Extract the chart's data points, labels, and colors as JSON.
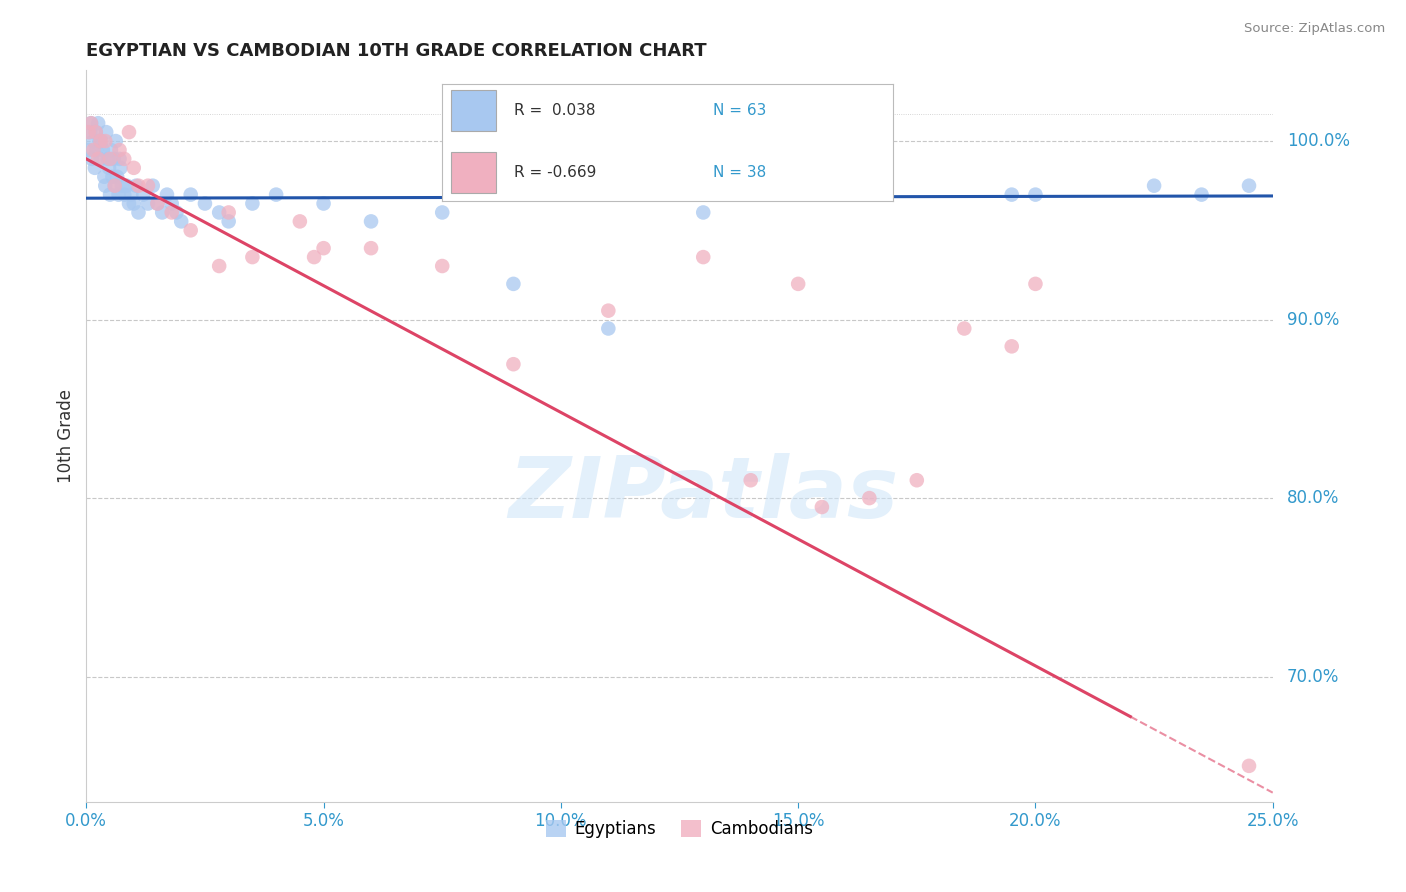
{
  "title": "EGYPTIAN VS CAMBODIAN 10TH GRADE CORRELATION CHART",
  "source": "Source: ZipAtlas.com",
  "xlabel_ticks": [
    "0.0%",
    "5.0%",
    "10.0%",
    "15.0%",
    "20.0%",
    "25.0%"
  ],
  "xlabel_values": [
    0.0,
    5.0,
    10.0,
    15.0,
    20.0,
    25.0
  ],
  "ylabel": "10th Grade",
  "right_ytick_labels": [
    "100.0%",
    "90.0%",
    "80.0%",
    "70.0%"
  ],
  "right_ytick_values": [
    100.0,
    90.0,
    80.0,
    70.0
  ],
  "xlim": [
    0.0,
    25.0
  ],
  "ylim": [
    63.0,
    104.0
  ],
  "egyptian_R": 0.038,
  "egyptian_N": 63,
  "cambodian_R": -0.669,
  "cambodian_N": 38,
  "egyptian_color": "#a8c8f0",
  "cambodian_color": "#f0b0c0",
  "egyptian_line_color": "#2255aa",
  "cambodian_line_color": "#dd4466",
  "watermark_text": "ZIPatlas",
  "background_color": "#ffffff",
  "eg_line_intercept": 96.8,
  "eg_line_slope": 0.005,
  "cam_line_intercept": 99.0,
  "cam_line_slope": -1.42,
  "cam_solid_end": 22.0,
  "egyptian_x": [
    0.05,
    0.08,
    0.1,
    0.12,
    0.15,
    0.18,
    0.2,
    0.22,
    0.25,
    0.28,
    0.3,
    0.32,
    0.35,
    0.38,
    0.4,
    0.42,
    0.45,
    0.48,
    0.5,
    0.52,
    0.55,
    0.58,
    0.6,
    0.62,
    0.65,
    0.68,
    0.7,
    0.72,
    0.75,
    0.8,
    0.85,
    0.9,
    0.95,
    1.0,
    1.05,
    1.1,
    1.2,
    1.3,
    1.4,
    1.5,
    1.6,
    1.7,
    1.8,
    1.9,
    2.0,
    2.2,
    2.5,
    2.8,
    3.0,
    3.5,
    4.0,
    5.0,
    6.0,
    7.5,
    9.0,
    11.0,
    13.0,
    16.0,
    19.5,
    20.0,
    22.5,
    23.5,
    24.5
  ],
  "egyptian_y": [
    99.5,
    100.5,
    101.0,
    99.0,
    100.0,
    98.5,
    100.5,
    99.5,
    101.0,
    100.0,
    99.0,
    100.0,
    99.5,
    98.0,
    97.5,
    100.5,
    99.0,
    98.5,
    97.0,
    99.5,
    98.0,
    99.0,
    97.5,
    100.0,
    98.0,
    97.0,
    99.0,
    98.5,
    97.5,
    97.0,
    97.5,
    96.5,
    97.0,
    96.5,
    97.5,
    96.0,
    97.0,
    96.5,
    97.5,
    96.5,
    96.0,
    97.0,
    96.5,
    96.0,
    95.5,
    97.0,
    96.5,
    96.0,
    95.5,
    96.5,
    97.0,
    96.5,
    95.5,
    96.0,
    92.0,
    89.5,
    96.0,
    97.0,
    97.0,
    97.0,
    97.5,
    97.0,
    97.5
  ],
  "cambodian_x": [
    0.05,
    0.1,
    0.15,
    0.2,
    0.25,
    0.3,
    0.4,
    0.5,
    0.6,
    0.7,
    0.8,
    0.9,
    1.0,
    1.1,
    1.3,
    1.5,
    1.8,
    2.2,
    2.8,
    3.5,
    4.5,
    6.0,
    7.5,
    9.0,
    11.0,
    13.0,
    15.0,
    15.5,
    16.5,
    17.5,
    18.5,
    19.5,
    20.0,
    3.0,
    5.0,
    4.8,
    14.0,
    24.5
  ],
  "cambodian_y": [
    100.5,
    101.0,
    99.5,
    100.5,
    99.0,
    100.0,
    100.0,
    99.0,
    97.5,
    99.5,
    99.0,
    100.5,
    98.5,
    97.5,
    97.5,
    96.5,
    96.0,
    95.0,
    93.0,
    93.5,
    95.5,
    94.0,
    93.0,
    87.5,
    90.5,
    93.5,
    92.0,
    79.5,
    80.0,
    81.0,
    89.5,
    88.5,
    92.0,
    96.0,
    94.0,
    93.5,
    81.0,
    65.0
  ]
}
